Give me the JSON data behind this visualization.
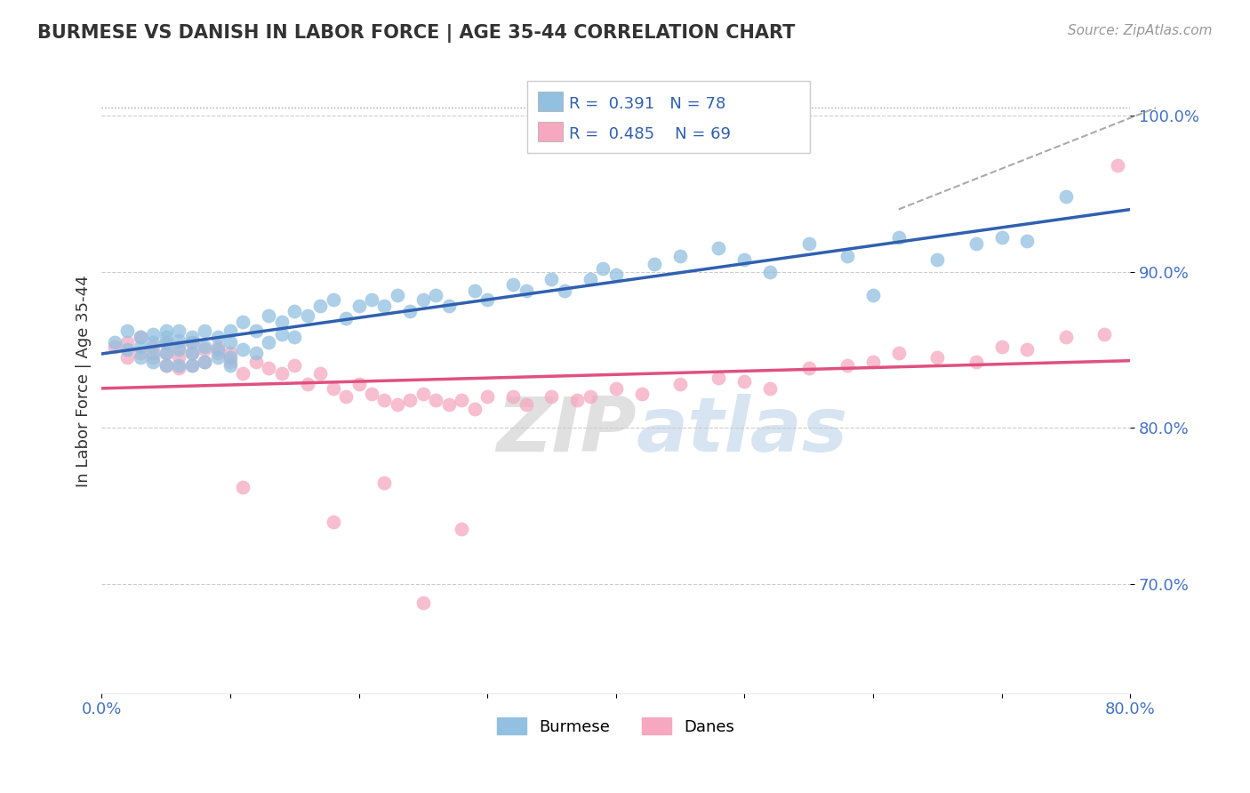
{
  "title": "BURMESE VS DANISH IN LABOR FORCE | AGE 35-44 CORRELATION CHART",
  "source_text": "Source: ZipAtlas.com",
  "ylabel": "In Labor Force | Age 35-44",
  "xlim": [
    0.0,
    0.8
  ],
  "ylim": [
    0.63,
    1.03
  ],
  "ytick_positions": [
    1.0,
    0.9,
    0.8,
    0.7
  ],
  "ytick_labels": [
    "100.0%",
    "90.0%",
    "80.0%",
    "70.0%"
  ],
  "burmese_color": "#92c0e0",
  "danes_color": "#f5a8c0",
  "burmese_line_color": "#3060b0",
  "danes_line_color": "#e05080",
  "R_burmese": 0.391,
  "N_burmese": 78,
  "R_danes": 0.485,
  "N_danes": 69,
  "legend_label_burmese": "Burmese",
  "legend_label_danes": "Danes",
  "watermark_zip": "ZIP",
  "watermark_atlas": "atlas",
  "background_color": "#ffffff",
  "grid_color": "#cccccc",
  "burmese_x": [
    0.01,
    0.02,
    0.02,
    0.03,
    0.03,
    0.03,
    0.04,
    0.04,
    0.04,
    0.04,
    0.05,
    0.05,
    0.05,
    0.05,
    0.05,
    0.06,
    0.06,
    0.06,
    0.06,
    0.07,
    0.07,
    0.07,
    0.07,
    0.08,
    0.08,
    0.08,
    0.09,
    0.09,
    0.09,
    0.1,
    0.1,
    0.1,
    0.1,
    0.11,
    0.11,
    0.12,
    0.12,
    0.13,
    0.13,
    0.14,
    0.14,
    0.15,
    0.15,
    0.16,
    0.17,
    0.18,
    0.19,
    0.2,
    0.21,
    0.22,
    0.23,
    0.24,
    0.25,
    0.26,
    0.27,
    0.29,
    0.3,
    0.32,
    0.33,
    0.35,
    0.36,
    0.38,
    0.39,
    0.4,
    0.43,
    0.45,
    0.48,
    0.5,
    0.52,
    0.55,
    0.58,
    0.6,
    0.62,
    0.65,
    0.68,
    0.7,
    0.72,
    0.75
  ],
  "burmese_y": [
    0.855,
    0.85,
    0.862,
    0.858,
    0.852,
    0.845,
    0.86,
    0.855,
    0.848,
    0.842,
    0.858,
    0.854,
    0.862,
    0.848,
    0.84,
    0.856,
    0.85,
    0.862,
    0.84,
    0.855,
    0.848,
    0.858,
    0.84,
    0.862,
    0.852,
    0.842,
    0.858,
    0.85,
    0.845,
    0.862,
    0.855,
    0.845,
    0.84,
    0.868,
    0.85,
    0.862,
    0.848,
    0.872,
    0.855,
    0.868,
    0.86,
    0.875,
    0.858,
    0.872,
    0.878,
    0.882,
    0.87,
    0.878,
    0.882,
    0.878,
    0.885,
    0.875,
    0.882,
    0.885,
    0.878,
    0.888,
    0.882,
    0.892,
    0.888,
    0.895,
    0.888,
    0.895,
    0.902,
    0.898,
    0.905,
    0.91,
    0.915,
    0.908,
    0.9,
    0.918,
    0.91,
    0.885,
    0.922,
    0.908,
    0.918,
    0.922,
    0.92,
    0.948
  ],
  "danes_x": [
    0.01,
    0.02,
    0.02,
    0.03,
    0.03,
    0.04,
    0.04,
    0.05,
    0.05,
    0.05,
    0.06,
    0.06,
    0.06,
    0.07,
    0.07,
    0.07,
    0.08,
    0.08,
    0.09,
    0.09,
    0.1,
    0.1,
    0.11,
    0.12,
    0.13,
    0.14,
    0.15,
    0.16,
    0.17,
    0.18,
    0.19,
    0.2,
    0.21,
    0.22,
    0.23,
    0.24,
    0.25,
    0.26,
    0.27,
    0.28,
    0.29,
    0.3,
    0.32,
    0.33,
    0.35,
    0.37,
    0.38,
    0.4,
    0.42,
    0.45,
    0.48,
    0.5,
    0.52,
    0.55,
    0.58,
    0.6,
    0.62,
    0.65,
    0.68,
    0.7,
    0.72,
    0.75,
    0.78,
    0.79,
    0.11,
    0.18,
    0.22,
    0.25,
    0.28
  ],
  "danes_y": [
    0.852,
    0.845,
    0.855,
    0.848,
    0.858,
    0.845,
    0.852,
    0.84,
    0.855,
    0.848,
    0.845,
    0.852,
    0.838,
    0.848,
    0.855,
    0.84,
    0.85,
    0.842,
    0.848,
    0.852,
    0.842,
    0.848,
    0.835,
    0.842,
    0.838,
    0.835,
    0.84,
    0.828,
    0.835,
    0.825,
    0.82,
    0.828,
    0.822,
    0.818,
    0.815,
    0.818,
    0.822,
    0.818,
    0.815,
    0.818,
    0.812,
    0.82,
    0.82,
    0.815,
    0.82,
    0.818,
    0.82,
    0.825,
    0.822,
    0.828,
    0.832,
    0.83,
    0.825,
    0.838,
    0.84,
    0.842,
    0.848,
    0.845,
    0.842,
    0.852,
    0.85,
    0.858,
    0.86,
    0.968,
    0.762,
    0.74,
    0.765,
    0.688,
    0.735
  ]
}
